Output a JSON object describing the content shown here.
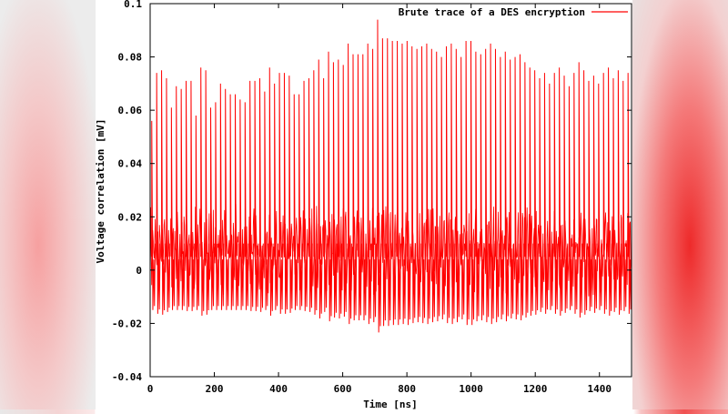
{
  "chart_data": {
    "type": "line",
    "title": "",
    "xlabel": "Time [ns]",
    "ylabel": "Voltage correlation [mV]",
    "xlim": [
      0,
      1500
    ],
    "ylim": [
      -0.04,
      0.1
    ],
    "xticks": [
      "0",
      "200",
      "400",
      "600",
      "800",
      "1000",
      "1200",
      "1400"
    ],
    "yticks": [
      "-0.04",
      "-0.02",
      "0",
      "0.02",
      "0.04",
      "0.06",
      "0.08",
      "0.1"
    ],
    "grid": false,
    "legend_position": "top-right",
    "series": [
      {
        "name": "Brute trace of a DES encryption",
        "color": "#ff0000",
        "spike_x_start": 5,
        "spike_x_step": 15.3,
        "baseline_band": [
          -0.01,
          0.025
        ],
        "spike_peaks": [
          0.056,
          0.074,
          0.075,
          0.072,
          0.061,
          0.069,
          0.068,
          0.071,
          0.071,
          0.058,
          0.076,
          0.075,
          0.061,
          0.063,
          0.07,
          0.068,
          0.066,
          0.066,
          0.064,
          0.063,
          0.071,
          0.071,
          0.072,
          0.067,
          0.076,
          0.07,
          0.074,
          0.074,
          0.073,
          0.066,
          0.066,
          0.071,
          0.072,
          0.075,
          0.079,
          0.072,
          0.082,
          0.078,
          0.079,
          0.077,
          0.085,
          0.081,
          0.081,
          0.081,
          0.085,
          0.083,
          0.094,
          0.087,
          0.087,
          0.086,
          0.086,
          0.085,
          0.086,
          0.084,
          0.083,
          0.084,
          0.085,
          0.083,
          0.082,
          0.08,
          0.084,
          0.085,
          0.083,
          0.08,
          0.086,
          0.086,
          0.082,
          0.081,
          0.083,
          0.085,
          0.083,
          0.08,
          0.082,
          0.079,
          0.08,
          0.081,
          0.078,
          0.076,
          0.075,
          0.072,
          0.074,
          0.07,
          0.074,
          0.076,
          0.073,
          0.069,
          0.074,
          0.078,
          0.075,
          0.071,
          0.073,
          0.07,
          0.074,
          0.076,
          0.072,
          0.075,
          0.071,
          0.074
        ]
      }
    ]
  }
}
